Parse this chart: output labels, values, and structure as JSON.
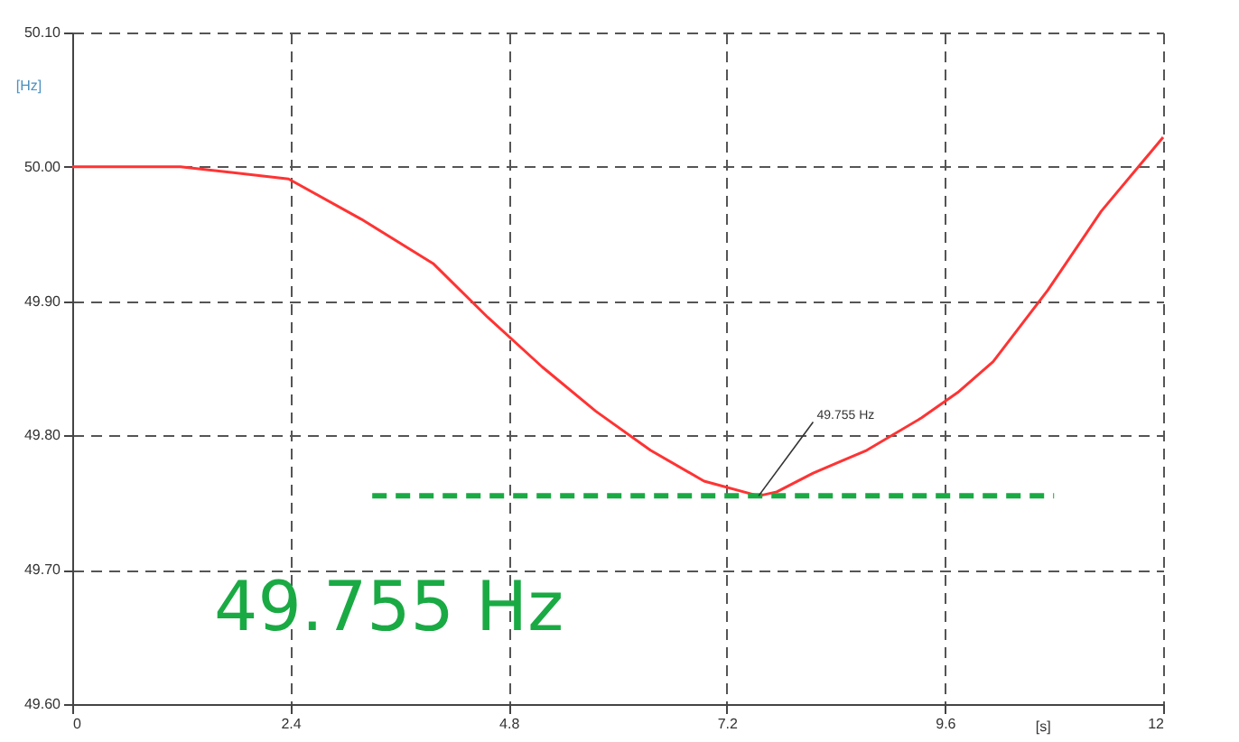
{
  "chart_data": {
    "type": "line",
    "xlabel": "[s]",
    "ylabel": "[Hz]",
    "x": [
      0,
      1.19,
      2.38,
      3.18,
      3.97,
      4.57,
      5.17,
      5.76,
      6.36,
      6.95,
      7.55,
      7.75,
      8.15,
      8.74,
      9.34,
      9.74,
      10.13,
      10.73,
      11.32,
      12.0
    ],
    "series": [
      {
        "color": "#ff3333",
        "values": [
          50.0,
          50.0,
          49.991,
          49.961,
          49.928,
          49.888,
          49.851,
          49.818,
          49.789,
          49.766,
          49.755,
          49.758,
          49.772,
          49.789,
          49.813,
          49.832,
          49.855,
          49.908,
          49.967,
          50.022
        ]
      },
      {
        "type": "line",
        "color": "#1aaa44",
        "line_style": "dashed",
        "x": [
          3.3,
          10.8
        ],
        "values": [
          49.755,
          49.755
        ]
      }
    ],
    "xlim": [
      0,
      12
    ],
    "xticks": [
      0,
      2.4,
      4.8,
      7.2,
      9.6,
      12
    ],
    "ylim": [
      49.6,
      50.1
    ],
    "yticks": [
      {
        "value": 49.6,
        "label": "49.60"
      },
      {
        "value": 49.7,
        "label": "49.70"
      },
      {
        "value": 49.8,
        "label": "49.80"
      },
      {
        "value": 49.9,
        "label": "49.90"
      },
      {
        "value": 50.0,
        "label": "50.00"
      },
      {
        "value": 50.1,
        "label": "50.10"
      }
    ],
    "grid": true,
    "line_style": "solid",
    "marker": "none",
    "annotations": [
      {
        "text": "49.755 Hz",
        "x": 7.55,
        "y": 49.755
      },
      "49.755 Hz"
    ]
  }
}
